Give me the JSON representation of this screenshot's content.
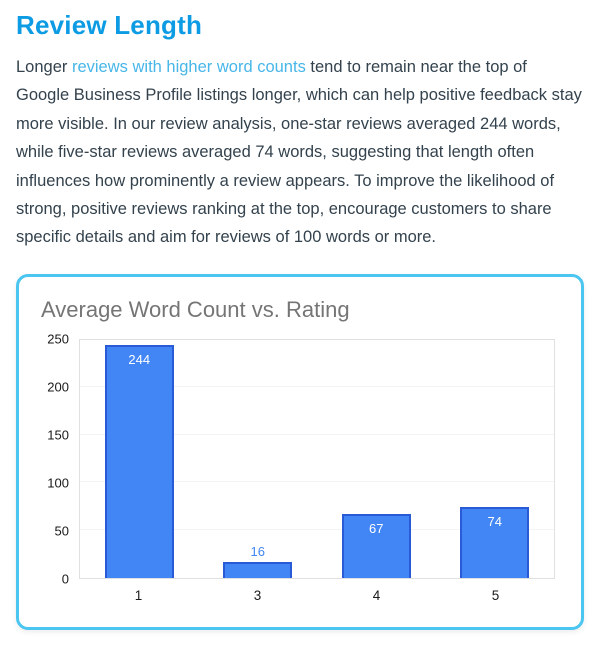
{
  "page": {
    "heading": "Review Length",
    "paragraph": {
      "pre_link": "Longer ",
      "link": "reviews with higher word counts",
      "post_link": " tend to remain near the top of Google Business Profile listings longer, which can help positive feedback stay more visible. In our review analysis, one-star reviews averaged 244 words, while five-star reviews averaged 74 words, suggesting that length often influences how prominently a review appears. To improve the likelihood of strong, positive reviews ranking at the top, encourage customers to share specific details and aim for reviews of 100 words or more."
    }
  },
  "chart_data": {
    "type": "bar",
    "title": "Average Word Count vs. Rating",
    "categories": [
      "1",
      "3",
      "4",
      "5"
    ],
    "values": [
      244,
      16,
      67,
      74
    ],
    "xlabel": "",
    "ylabel": "",
    "ylim": [
      0,
      250
    ],
    "yticks": [
      0,
      50,
      100,
      150,
      200,
      250
    ],
    "grid": false,
    "legend": "none",
    "label_placement": [
      "inside",
      "outside",
      "inside",
      "inside"
    ]
  },
  "colors": {
    "heading": "#0d9ce4",
    "link": "#47b6e8",
    "body_text": "#33424d",
    "card_border": "#4ac6f0",
    "chart_title": "#757575",
    "bar_fill": "#4285f4",
    "bar_border": "#2a5bd7",
    "label_inside": "#ffffff",
    "label_outside": "#4285f4"
  }
}
